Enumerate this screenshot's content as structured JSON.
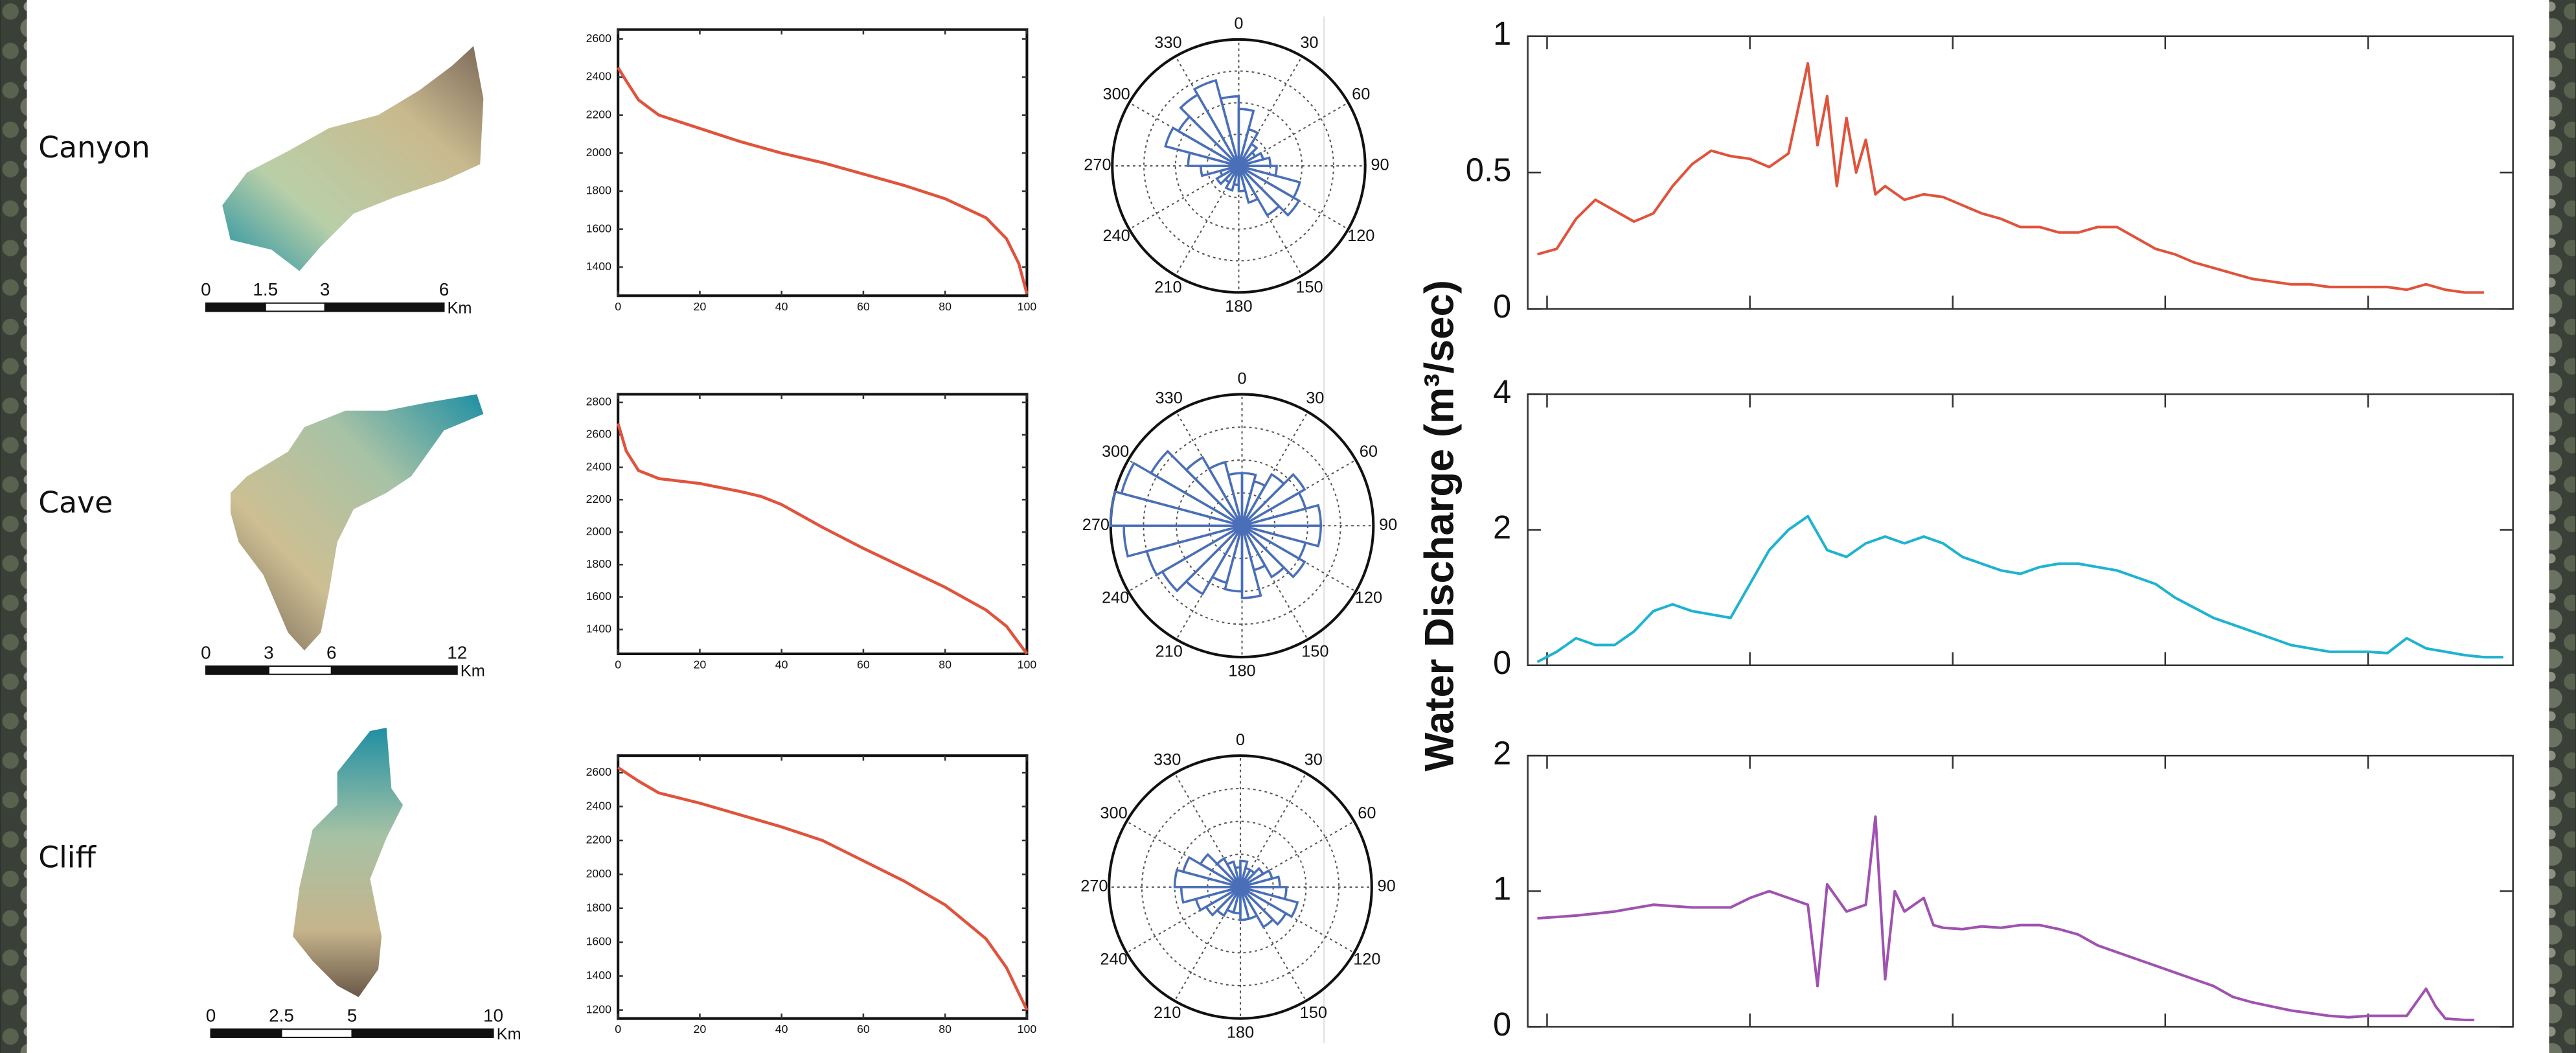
{
  "row_labels": [
    "Canyon",
    "Cave",
    "Cliff"
  ],
  "scale_bars": [
    {
      "ticks": [
        0,
        1.5,
        3,
        6
      ],
      "unit": "Km"
    },
    {
      "ticks": [
        0,
        3,
        6,
        12
      ],
      "unit": "Km"
    },
    {
      "ticks": [
        0,
        2.5,
        5,
        10
      ],
      "unit": "Km"
    }
  ],
  "y_axis_label": "Water Discharge (m³/sec)",
  "chart_data": [
    {
      "type": "line",
      "color": "#e0533c",
      "x": [
        0,
        2,
        5,
        10,
        20,
        30,
        40,
        50,
        60,
        70,
        80,
        90,
        95,
        98,
        100
      ],
      "values": [
        2450,
        2380,
        2280,
        2200,
        2130,
        2060,
        2000,
        1950,
        1890,
        1830,
        1760,
        1660,
        1550,
        1420,
        1260
      ],
      "xlim": [
        0,
        100
      ],
      "xticks": [
        0,
        20,
        40,
        60,
        80,
        100
      ],
      "show_xtick_labels": true,
      "ylim": [
        1250,
        2650
      ],
      "yticks": [
        1400,
        1600,
        1800,
        2000,
        2200,
        2400,
        2600
      ]
    },
    {
      "type": "rose",
      "color": "#4a6fb8",
      "theta": [
        0,
        15,
        30,
        45,
        60,
        75,
        90,
        105,
        120,
        135,
        150,
        165,
        180,
        195,
        210,
        225,
        240,
        255,
        270,
        285,
        300,
        315,
        330,
        345
      ],
      "values": [
        0.45,
        0.3,
        0.2,
        0.15,
        0.2,
        0.25,
        0.3,
        0.5,
        0.55,
        0.45,
        0.3,
        0.2,
        0.15,
        0.2,
        0.15,
        0.2,
        0.15,
        0.3,
        0.4,
        0.6,
        0.55,
        0.65,
        0.7,
        0.55
      ],
      "rlim": [
        0,
        1
      ],
      "thetaticks": [
        0,
        30,
        60,
        90,
        120,
        150,
        180,
        210,
        240,
        270,
        300,
        330
      ]
    },
    {
      "type": "line",
      "color": "#e0533c",
      "x": [
        0,
        2,
        4,
        6,
        8,
        10,
        12,
        14,
        16,
        18,
        20,
        22,
        24,
        26,
        28,
        29,
        30,
        31,
        32,
        33,
        34,
        35,
        36,
        38,
        40,
        42,
        44,
        46,
        48,
        50,
        52,
        54,
        56,
        58,
        60,
        62,
        64,
        66,
        68,
        70,
        72,
        74,
        76,
        78,
        80,
        82,
        84,
        86,
        88,
        90,
        92,
        94,
        96,
        98
      ],
      "values": [
        0.2,
        0.22,
        0.33,
        0.4,
        0.36,
        0.32,
        0.35,
        0.45,
        0.53,
        0.58,
        0.56,
        0.55,
        0.52,
        0.57,
        0.9,
        0.6,
        0.78,
        0.45,
        0.7,
        0.5,
        0.62,
        0.42,
        0.45,
        0.4,
        0.42,
        0.41,
        0.38,
        0.35,
        0.33,
        0.3,
        0.3,
        0.28,
        0.28,
        0.3,
        0.3,
        0.26,
        0.22,
        0.2,
        0.17,
        0.15,
        0.13,
        0.11,
        0.1,
        0.09,
        0.09,
        0.08,
        0.08,
        0.08,
        0.08,
        0.07,
        0.09,
        0.07,
        0.06,
        0.06
      ],
      "xlim": [
        -1,
        101
      ],
      "xticks": [
        1,
        22,
        43,
        65,
        86
      ],
      "show_xtick_labels": false,
      "ylim": [
        0,
        1
      ],
      "yticks": [
        0,
        0.5,
        1
      ]
    },
    {
      "type": "line",
      "color": "#e0533c",
      "x": [
        0,
        2,
        5,
        10,
        20,
        30,
        35,
        40,
        50,
        60,
        70,
        80,
        90,
        95,
        100
      ],
      "values": [
        2670,
        2500,
        2380,
        2330,
        2300,
        2250,
        2220,
        2170,
        2030,
        1900,
        1780,
        1660,
        1520,
        1420,
        1250
      ],
      "xlim": [
        0,
        100
      ],
      "xticks": [
        0,
        20,
        40,
        60,
        80,
        100
      ],
      "show_xtick_labels": true,
      "ylim": [
        1250,
        2850
      ],
      "yticks": [
        1400,
        1600,
        1800,
        2000,
        2200,
        2400,
        2600,
        2800
      ]
    },
    {
      "type": "rose",
      "color": "#4a6fb8",
      "theta": [
        0,
        15,
        30,
        45,
        60,
        75,
        90,
        105,
        120,
        135,
        150,
        165,
        180,
        195,
        210,
        225,
        240,
        255,
        270,
        285,
        300,
        315,
        330,
        345
      ],
      "values": [
        0.4,
        0.35,
        0.45,
        0.55,
        0.5,
        0.6,
        0.6,
        0.5,
        0.55,
        0.45,
        0.35,
        0.55,
        0.5,
        0.45,
        0.6,
        0.7,
        0.75,
        0.9,
        1.0,
        0.95,
        0.8,
        0.6,
        0.5,
        0.4
      ],
      "rlim": [
        0,
        1
      ],
      "thetaticks": [
        0,
        30,
        60,
        90,
        120,
        150,
        180,
        210,
        240,
        270,
        300,
        330
      ]
    },
    {
      "type": "line",
      "color": "#1fb3d0",
      "x": [
        0,
        2,
        4,
        6,
        8,
        10,
        12,
        14,
        16,
        18,
        20,
        22,
        24,
        26,
        28,
        30,
        32,
        34,
        36,
        38,
        40,
        42,
        44,
        46,
        48,
        50,
        52,
        54,
        56,
        58,
        60,
        62,
        64,
        66,
        68,
        70,
        72,
        74,
        76,
        78,
        80,
        82,
        84,
        86,
        88,
        90,
        92,
        94,
        96,
        98,
        100
      ],
      "values": [
        0.05,
        0.2,
        0.4,
        0.3,
        0.3,
        0.5,
        0.8,
        0.9,
        0.8,
        0.75,
        0.7,
        1.2,
        1.7,
        2.0,
        2.2,
        1.7,
        1.6,
        1.8,
        1.9,
        1.8,
        1.9,
        1.8,
        1.6,
        1.5,
        1.4,
        1.35,
        1.45,
        1.5,
        1.5,
        1.45,
        1.4,
        1.3,
        1.2,
        1.0,
        0.85,
        0.7,
        0.6,
        0.5,
        0.4,
        0.3,
        0.25,
        0.2,
        0.2,
        0.2,
        0.18,
        0.4,
        0.25,
        0.2,
        0.15,
        0.12,
        0.12
      ],
      "xlim": [
        -1,
        101
      ],
      "xticks": [
        1,
        22,
        43,
        65,
        86
      ],
      "show_xtick_labels": false,
      "ylim": [
        0,
        4
      ],
      "yticks": [
        0,
        2,
        4
      ]
    },
    {
      "type": "line",
      "color": "#e0533c",
      "x": [
        0,
        5,
        10,
        20,
        30,
        40,
        50,
        60,
        70,
        80,
        90,
        95,
        100
      ],
      "values": [
        2630,
        2550,
        2480,
        2420,
        2350,
        2280,
        2200,
        2080,
        1960,
        1820,
        1620,
        1450,
        1200
      ],
      "xlim": [
        0,
        100
      ],
      "xticks": [
        0,
        20,
        40,
        60,
        80,
        100
      ],
      "show_xtick_labels": true,
      "ylim": [
        1150,
        2700
      ],
      "yticks": [
        1200,
        1400,
        1600,
        1800,
        2000,
        2200,
        2400,
        2600
      ]
    },
    {
      "type": "rose",
      "color": "#4a6fb8",
      "theta": [
        0,
        15,
        30,
        45,
        60,
        75,
        90,
        105,
        120,
        135,
        150,
        165,
        180,
        195,
        210,
        225,
        240,
        255,
        270,
        285,
        300,
        315,
        330,
        345
      ],
      "values": [
        0.2,
        0.15,
        0.15,
        0.2,
        0.25,
        0.3,
        0.35,
        0.45,
        0.4,
        0.35,
        0.25,
        0.25,
        0.2,
        0.2,
        0.25,
        0.3,
        0.35,
        0.45,
        0.5,
        0.45,
        0.35,
        0.25,
        0.2,
        0.15
      ],
      "rlim": [
        0,
        1
      ],
      "thetaticks": [
        0,
        30,
        60,
        90,
        120,
        150,
        180,
        210,
        240,
        270,
        300,
        330
      ]
    },
    {
      "type": "line",
      "color": "#a052b0",
      "x": [
        0,
        4,
        8,
        12,
        16,
        20,
        22,
        24,
        26,
        28,
        29,
        30,
        32,
        34,
        35,
        36,
        37,
        38,
        40,
        41,
        42,
        44,
        46,
        48,
        50,
        52,
        54,
        56,
        58,
        60,
        62,
        64,
        66,
        68,
        70,
        72,
        74,
        76,
        78,
        80,
        82,
        84,
        86,
        88,
        90,
        92,
        93,
        94,
        96,
        97
      ],
      "values": [
        0.8,
        0.82,
        0.85,
        0.9,
        0.88,
        0.88,
        0.95,
        1.0,
        0.95,
        0.9,
        0.3,
        1.05,
        0.85,
        0.9,
        1.55,
        0.35,
        1.0,
        0.85,
        0.95,
        0.75,
        0.73,
        0.72,
        0.74,
        0.73,
        0.75,
        0.75,
        0.72,
        0.68,
        0.6,
        0.55,
        0.5,
        0.45,
        0.4,
        0.35,
        0.3,
        0.22,
        0.18,
        0.15,
        0.12,
        0.1,
        0.08,
        0.07,
        0.08,
        0.08,
        0.08,
        0.28,
        0.15,
        0.06,
        0.05,
        0.05
      ],
      "xlim": [
        -1,
        101
      ],
      "xticks": [
        1,
        22,
        43,
        65,
        86
      ],
      "show_xtick_labels": false,
      "ylim": [
        0,
        2
      ],
      "yticks": [
        0,
        1,
        2
      ]
    }
  ]
}
